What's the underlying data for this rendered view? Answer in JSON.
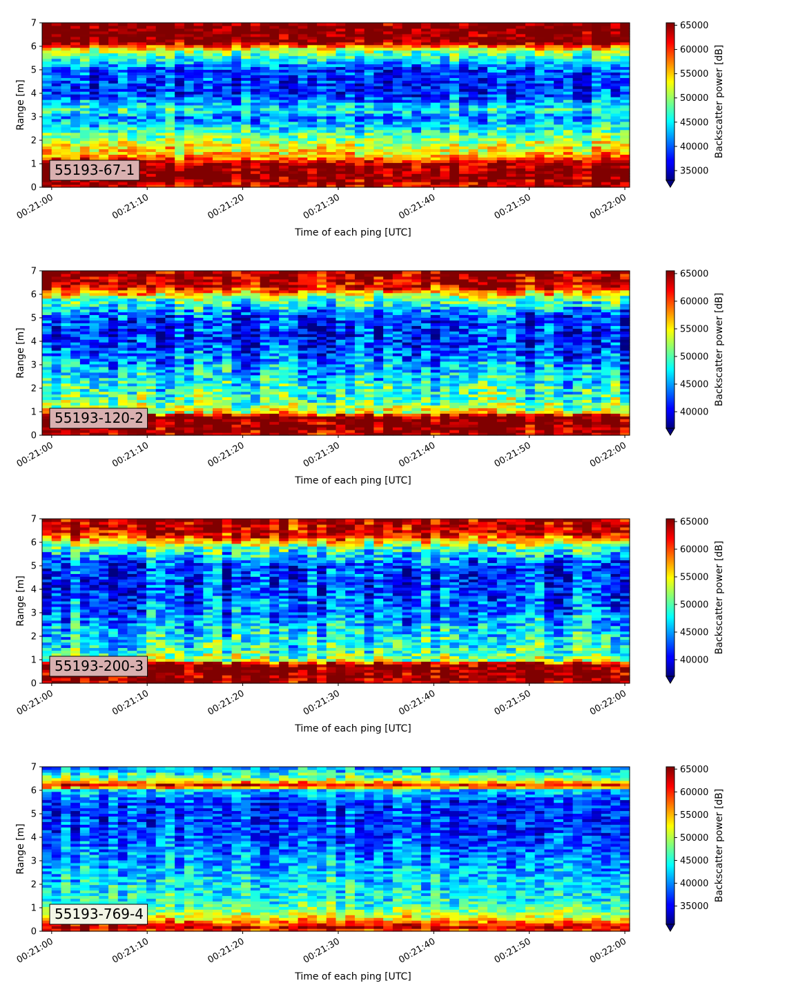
{
  "colors": {
    "tag_box": "#d9b0b0",
    "tag_box_last": "#f2f5e6"
  },
  "chart_data": [
    {
      "type": "heatmap",
      "annotation": "55193-67-1",
      "xlabel": "Time of each ping [UTC]",
      "ylabel": "Range [m]",
      "colorbar_label": "Backscatter power [dB]",
      "colormap": "jet",
      "xlim": [
        "00:21:00",
        "00:22:00"
      ],
      "xticks": [
        "00:21:00",
        "00:21:10",
        "00:21:20",
        "00:21:30",
        "00:21:40",
        "00:21:50",
        "00:22:00"
      ],
      "ylim": [
        0,
        7
      ],
      "yticks": [
        0,
        1,
        2,
        3,
        4,
        5,
        6,
        7
      ],
      "clim": [
        33000,
        65500
      ],
      "colorbar_ticks": [
        35000,
        40000,
        45000,
        50000,
        55000,
        60000,
        65000
      ],
      "profile": {
        "range_m": [
          0,
          0.5,
          1.0,
          1.3,
          1.8,
          2.3,
          3.0,
          3.3,
          4.0,
          5.0,
          5.8,
          6.2,
          7.0
        ],
        "power": [
          62000,
          66000,
          65000,
          56000,
          52000,
          47000,
          41000,
          46000,
          38000,
          39000,
          50000,
          66000,
          66000
        ]
      }
    },
    {
      "type": "heatmap",
      "annotation": "55193-120-2",
      "xlabel": "Time of each ping [UTC]",
      "ylabel": "Range [m]",
      "colorbar_label": "Backscatter power [dB]",
      "colormap": "jet",
      "xlim": [
        "00:21:00",
        "00:22:00"
      ],
      "xticks": [
        "00:21:00",
        "00:21:10",
        "00:21:20",
        "00:21:30",
        "00:21:40",
        "00:21:50",
        "00:22:00"
      ],
      "ylim": [
        0,
        7
      ],
      "yticks": [
        0,
        1,
        2,
        3,
        4,
        5,
        6,
        7
      ],
      "clim": [
        37000,
        65500
      ],
      "colorbar_ticks": [
        40000,
        45000,
        50000,
        55000,
        60000,
        65000
      ],
      "profile": {
        "range_m": [
          0,
          0.4,
          0.8,
          1.0,
          1.5,
          2.2,
          3.0,
          4.0,
          5.0,
          5.8,
          6.3,
          7.0
        ],
        "power": [
          64000,
          66000,
          66000,
          54000,
          50000,
          48000,
          45000,
          41000,
          42000,
          50000,
          62000,
          65000
        ]
      }
    },
    {
      "type": "heatmap",
      "annotation": "55193-200-3",
      "xlabel": "Time of each ping [UTC]",
      "ylabel": "Range [m]",
      "colorbar_label": "Backscatter power [dB]",
      "colormap": "jet",
      "xlim": [
        "00:21:00",
        "00:22:00"
      ],
      "xticks": [
        "00:21:00",
        "00:21:10",
        "00:21:20",
        "00:21:30",
        "00:21:40",
        "00:21:50",
        "00:22:00"
      ],
      "ylim": [
        0,
        7
      ],
      "yticks": [
        0,
        1,
        2,
        3,
        4,
        5,
        6,
        7
      ],
      "clim": [
        37000,
        65500
      ],
      "colorbar_ticks": [
        40000,
        45000,
        50000,
        55000,
        60000,
        65000
      ],
      "profile": {
        "range_m": [
          0,
          0.4,
          0.8,
          1.0,
          1.5,
          2.2,
          3.0,
          4.0,
          5.0,
          5.8,
          6.3,
          7.0
        ],
        "power": [
          64000,
          66000,
          66000,
          52000,
          49000,
          47000,
          44000,
          42000,
          42000,
          50000,
          62000,
          65000
        ]
      }
    },
    {
      "type": "heatmap",
      "annotation": "55193-769-4",
      "xlabel": "Time of each ping [UTC]",
      "ylabel": "Range [m]",
      "colorbar_label": "Backscatter power [dB]",
      "colormap": "jet",
      "xlim": [
        "00:21:00",
        "00:22:00"
      ],
      "xticks": [
        "00:21:00",
        "00:21:10",
        "00:21:20",
        "00:21:30",
        "00:21:40",
        "00:21:50",
        "00:22:00"
      ],
      "ylim": [
        0,
        7
      ],
      "yticks": [
        0,
        1,
        2,
        3,
        4,
        5,
        6,
        7
      ],
      "clim": [
        31000,
        65500
      ],
      "colorbar_ticks": [
        35000,
        40000,
        45000,
        50000,
        55000,
        60000,
        65000
      ],
      "profile": {
        "range_m": [
          0,
          0.2,
          0.3,
          0.6,
          1.0,
          1.5,
          2.5,
          3.5,
          4.5,
          5.5,
          6.0,
          6.2,
          6.5,
          7.0
        ],
        "power": [
          58000,
          64000,
          60000,
          52000,
          47000,
          44000,
          42000,
          39000,
          37000,
          37000,
          42000,
          63000,
          48000,
          40000
        ]
      }
    }
  ]
}
